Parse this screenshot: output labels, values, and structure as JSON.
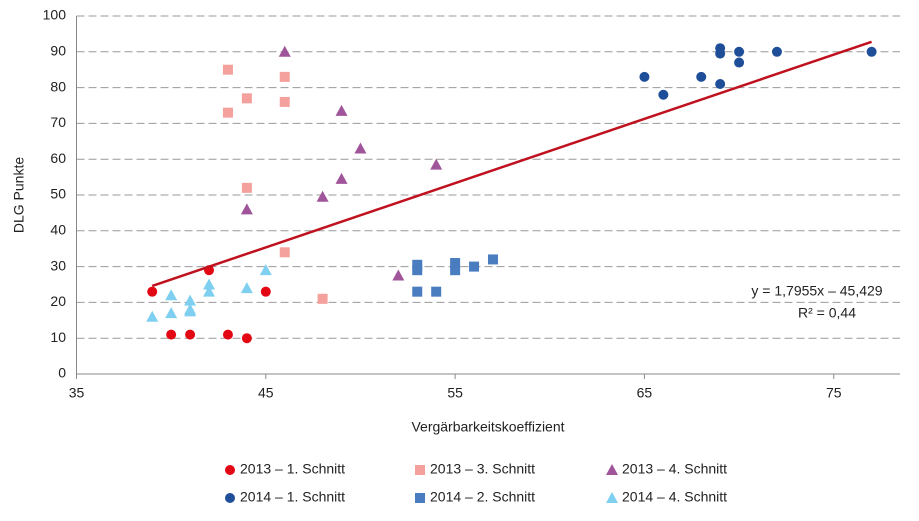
{
  "chart_data": {
    "type": "scatter",
    "x_label": "Vergärbarkeitskoeffizient",
    "y_label": "DLG Punkte",
    "xlim": [
      35,
      78.5
    ],
    "xticks": [
      35,
      45,
      55,
      65,
      75
    ],
    "ylim": [
      0,
      100
    ],
    "yticks": [
      0,
      10,
      20,
      30,
      40,
      50,
      60,
      70,
      80,
      90,
      100
    ],
    "grid": true,
    "legend": "bottom",
    "series": [
      {
        "name": "2013 – 1. Schnitt",
        "color": "#e30613",
        "marker": "circle",
        "x": [
          39,
          40,
          41,
          42,
          43,
          44,
          45
        ],
        "values": [
          23,
          11,
          11,
          29,
          11,
          10,
          23
        ]
      },
      {
        "name": "2013 – 3. Schnitt",
        "color": "#f4a09c",
        "marker": "square",
        "x": [
          43,
          43,
          44,
          46,
          46,
          44,
          46,
          48
        ],
        "values": [
          85,
          73,
          77,
          83,
          76,
          52,
          34,
          21
        ]
      },
      {
        "name": "2013 – 4. Schnitt",
        "color": "#a0559a",
        "marker": "triangle",
        "x": [
          44,
          46,
          49,
          50,
          49,
          48,
          52,
          54
        ],
        "values": [
          46,
          90,
          73.5,
          63,
          54.5,
          49.5,
          27.5,
          58.5
        ]
      },
      {
        "name": "2014 – 1. Schnitt",
        "color": "#1f4e99",
        "marker": "circle",
        "x": [
          65,
          66,
          68,
          69,
          69,
          69,
          70,
          70,
          72,
          77
        ],
        "values": [
          83,
          78,
          83,
          91,
          89.5,
          81,
          90,
          87,
          90,
          90
        ]
      },
      {
        "name": "2014 – 2. Schnitt",
        "color": "#4a7cc0",
        "marker": "square",
        "x": [
          53,
          53,
          53,
          54,
          55,
          55,
          56,
          57
        ],
        "values": [
          23,
          29,
          30.5,
          23,
          31,
          29,
          30,
          32
        ]
      },
      {
        "name": "2014 – 4. Schnitt",
        "color": "#7fd0f0",
        "marker": "triangle",
        "x": [
          39,
          40,
          40,
          41,
          41,
          41,
          42,
          42,
          44,
          45
        ],
        "values": [
          16,
          22,
          17,
          20.5,
          18,
          17.5,
          25,
          23,
          24,
          29
        ]
      }
    ],
    "trendline": {
      "color": "#c0111f",
      "x": [
        39,
        77
      ],
      "values": [
        24.6,
        92.8
      ]
    },
    "annotations": [
      "y = 1,7955x – 45,429",
      "R² = 0,44"
    ]
  }
}
